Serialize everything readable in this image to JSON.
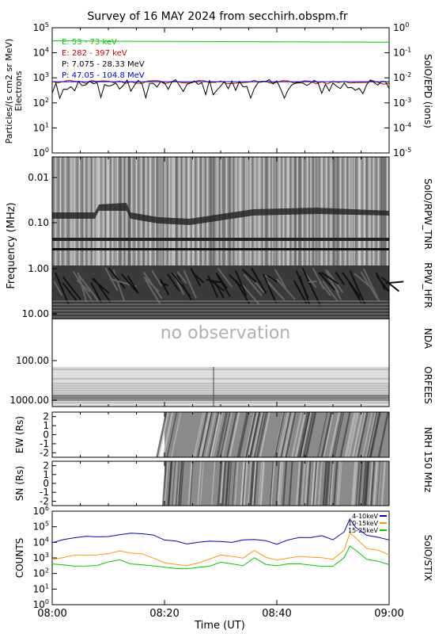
{
  "page": {
    "title": "Survey of 16 MAY 2024 from secchirh.obspm.fr"
  },
  "chart_data": [
    {
      "type": "line",
      "panel": "solo_epd",
      "ylabel_lines": [
        "Particles/(s cm2 sr MeV)",
        "Electrons"
      ],
      "right_label": "SolO/EPD (ions)",
      "ylim": [
        1,
        100000
      ],
      "yscale": "log",
      "yticks": [
        "10^0",
        "10^1",
        "10^2",
        "10^3",
        "10^4",
        "10^5"
      ],
      "right_yticks": [
        "10^-5",
        "10^-4",
        "10^-3",
        "10^-2",
        "10^-1",
        "10^0"
      ],
      "xlim": [
        "08:00",
        "09:00"
      ],
      "series": [
        {
          "name": "E: 53 - 73 keV",
          "color": "#00cc00",
          "x": [
            "08:00",
            "08:10",
            "08:20",
            "08:30",
            "08:40",
            "08:50",
            "09:00"
          ],
          "values": [
            30000,
            29000,
            28500,
            28000,
            27500,
            27000,
            26500
          ]
        },
        {
          "name": "E: 282 - 397 keV",
          "color": "#cc0000",
          "x": [
            "08:00",
            "08:10",
            "08:20",
            "08:30",
            "08:40",
            "08:50",
            "09:00"
          ],
          "values": [
            700,
            650,
            620,
            600,
            580,
            560,
            540
          ]
        },
        {
          "name": "P: 7.075 - 28.33 MeV",
          "color": "#000000",
          "x": [
            "08:00",
            "08:05",
            "08:10",
            "08:15",
            "08:20",
            "08:25",
            "08:30",
            "08:35",
            "08:40",
            "08:45",
            "08:50",
            "08:55",
            "09:00"
          ],
          "values": [
            500,
            250,
            400,
            300,
            550,
            280,
            450,
            300,
            400,
            250,
            350,
            300,
            450
          ]
        },
        {
          "name": "P: 47.05 - 104.8 MeV",
          "color": "#0000cc",
          "x": [
            "08:00",
            "09:00"
          ],
          "values": [
            700,
            700
          ]
        }
      ]
    },
    {
      "type": "heatmap",
      "panel": "radio_spectrogram",
      "ylabel": "Frequency (MHz)",
      "yscale": "log",
      "yticks": [
        "0.01",
        "0.10",
        "1.00",
        "10.00",
        "100.00",
        "1000.00"
      ],
      "xlim": [
        "08:00",
        "09:00"
      ],
      "right_labels": [
        "SolO/RPW_TNR",
        "RPW_HFR",
        "NDA",
        "ORFEES"
      ],
      "annotations": [
        "no observation"
      ]
    },
    {
      "type": "heatmap",
      "panel": "nrh_ew",
      "ylabel": "EW (Rs)",
      "ylim": [
        -2.5,
        2.5
      ],
      "yticks": [
        "-2",
        "-1",
        "0",
        "1",
        "2"
      ],
      "data_start": "08:20",
      "xlim": [
        "08:00",
        "09:00"
      ]
    },
    {
      "type": "heatmap",
      "panel": "nrh_sn",
      "ylabel": "SN (Rs)",
      "ylim": [
        -2.5,
        2.5
      ],
      "yticks": [
        "-2",
        "-1",
        "0",
        "1",
        "2"
      ],
      "data_start": "08:20",
      "xlim": [
        "08:00",
        "09:00"
      ],
      "right_label": "NRH 150 MHz"
    },
    {
      "type": "line",
      "panel": "solo_stix",
      "ylabel": "COUNTS",
      "right_label": "SolO/STIX",
      "yscale": "log",
      "ylim": [
        1,
        1000000
      ],
      "yticks": [
        "10^0",
        "10^1",
        "10^2",
        "10^3",
        "10^4",
        "10^5",
        "10^6"
      ],
      "xlabel": "Time (UT)",
      "xticks": [
        "08:00",
        "08:20",
        "08:40",
        "09:00"
      ],
      "xlim": [
        "08:00",
        "09:00"
      ],
      "series": [
        {
          "name": "4-10keV",
          "color": "#0000cc",
          "x": [
            "08:00",
            "08:02",
            "08:04",
            "08:06",
            "08:08",
            "08:10",
            "08:12",
            "08:14",
            "08:16",
            "08:18",
            "08:20",
            "08:22",
            "08:24",
            "08:26",
            "08:28",
            "08:30",
            "08:32",
            "08:34",
            "08:36",
            "08:38",
            "08:40",
            "08:42",
            "08:44",
            "08:46",
            "08:48",
            "08:50",
            "08:52",
            "08:53",
            "08:54",
            "08:56",
            "08:58",
            "09:00"
          ],
          "values": [
            10000,
            15000,
            20000,
            25000,
            22000,
            25000,
            30000,
            40000,
            35000,
            30000,
            15000,
            12000,
            8000,
            10000,
            12000,
            12000,
            10000,
            15000,
            15000,
            12000,
            8000,
            15000,
            20000,
            20000,
            25000,
            15000,
            50000,
            300000,
            100000,
            30000,
            20000,
            15000
          ]
        },
        {
          "name": "10-15keV",
          "color": "#ff9900",
          "x": [
            "08:00",
            "08:02",
            "08:04",
            "08:06",
            "08:08",
            "08:10",
            "08:12",
            "08:14",
            "08:16",
            "08:18",
            "08:20",
            "08:22",
            "08:24",
            "08:26",
            "08:28",
            "08:30",
            "08:32",
            "08:34",
            "08:36",
            "08:38",
            "08:40",
            "08:42",
            "08:44",
            "08:46",
            "08:48",
            "08:50",
            "08:52",
            "08:53",
            "08:54",
            "08:56",
            "08:58",
            "09:00"
          ],
          "values": [
            800,
            1000,
            1500,
            1600,
            1500,
            2000,
            3000,
            2000,
            1800,
            1000,
            500,
            400,
            300,
            500,
            800,
            1500,
            1200,
            1000,
            3000,
            1200,
            700,
            1000,
            1200,
            1200,
            1000,
            800,
            3000,
            40000,
            20000,
            4000,
            3000,
            1500
          ]
        },
        {
          "name": "15-25keV",
          "color": "#00cc00",
          "x": [
            "08:00",
            "08:02",
            "08:04",
            "08:06",
            "08:08",
            "08:10",
            "08:12",
            "08:14",
            "08:16",
            "08:18",
            "08:20",
            "08:22",
            "08:24",
            "08:26",
            "08:28",
            "08:30",
            "08:32",
            "08:34",
            "08:36",
            "08:38",
            "08:40",
            "08:42",
            "08:44",
            "08:46",
            "08:48",
            "08:50",
            "08:52",
            "08:53",
            "08:54",
            "08:56",
            "08:58",
            "09:00"
          ],
          "values": [
            400,
            350,
            300,
            300,
            320,
            600,
            800,
            400,
            350,
            300,
            250,
            200,
            200,
            250,
            300,
            500,
            400,
            300,
            1000,
            400,
            300,
            400,
            400,
            350,
            300,
            300,
            1000,
            6000,
            3000,
            800,
            600,
            400
          ]
        }
      ]
    }
  ]
}
